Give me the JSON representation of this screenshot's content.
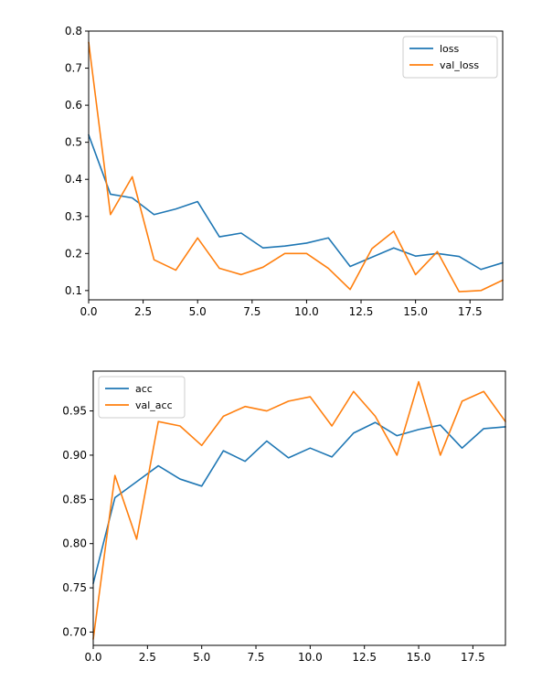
{
  "chart_data": [
    {
      "type": "line",
      "x": [
        0,
        1,
        2,
        3,
        4,
        5,
        6,
        7,
        8,
        9,
        10,
        11,
        12,
        13,
        14,
        15,
        16,
        17,
        18,
        19
      ],
      "xlim": [
        0,
        19
      ],
      "ylim": [
        0.075,
        0.8
      ],
      "xticks": [
        0,
        2.5,
        5,
        7.5,
        10,
        12.5,
        15,
        17.5
      ],
      "xtick_labels": [
        "0.0",
        "2.5",
        "5.0",
        "7.5",
        "10.0",
        "12.5",
        "15.0",
        "17.5"
      ],
      "yticks": [
        0.1,
        0.2,
        0.3,
        0.4,
        0.5,
        0.6,
        0.7,
        0.8
      ],
      "ytick_labels": [
        "0.1",
        "0.2",
        "0.3",
        "0.4",
        "0.5",
        "0.6",
        "0.7",
        "0.8"
      ],
      "legend_position": "top-right",
      "grid": false,
      "series": [
        {
          "name": "loss",
          "color": "#1f77b4",
          "values": [
            0.52,
            0.36,
            0.35,
            0.305,
            0.32,
            0.34,
            0.245,
            0.255,
            0.215,
            0.22,
            0.228,
            0.242,
            0.165,
            0.19,
            0.215,
            0.193,
            0.2,
            0.192,
            0.157,
            0.175
          ]
        },
        {
          "name": "val_loss",
          "color": "#ff7f0e",
          "values": [
            0.77,
            0.305,
            0.407,
            0.183,
            0.155,
            0.242,
            0.16,
            0.143,
            0.163,
            0.2,
            0.2,
            0.16,
            0.103,
            0.213,
            0.26,
            0.143,
            0.205,
            0.097,
            0.1,
            0.128
          ]
        }
      ]
    },
    {
      "type": "line",
      "x": [
        0,
        1,
        2,
        3,
        4,
        5,
        6,
        7,
        8,
        9,
        10,
        11,
        12,
        13,
        14,
        15,
        16,
        17,
        18,
        19
      ],
      "xlim": [
        0,
        19
      ],
      "ylim": [
        0.685,
        0.995
      ],
      "xticks": [
        0,
        2.5,
        5,
        7.5,
        10,
        12.5,
        15,
        17.5
      ],
      "xtick_labels": [
        "0.0",
        "2.5",
        "5.0",
        "7.5",
        "10.0",
        "12.5",
        "15.0",
        "17.5"
      ],
      "yticks": [
        0.7,
        0.75,
        0.8,
        0.85,
        0.9,
        0.95
      ],
      "ytick_labels": [
        "0.70",
        "0.75",
        "0.80",
        "0.85",
        "0.90",
        "0.95"
      ],
      "legend_position": "top-left",
      "grid": false,
      "series": [
        {
          "name": "acc",
          "color": "#1f77b4",
          "values": [
            0.755,
            0.852,
            0.87,
            0.888,
            0.873,
            0.865,
            0.905,
            0.893,
            0.916,
            0.897,
            0.908,
            0.898,
            0.925,
            0.937,
            0.922,
            0.929,
            0.934,
            0.908,
            0.93,
            0.932
          ]
        },
        {
          "name": "val_acc",
          "color": "#ff7f0e",
          "values": [
            0.692,
            0.877,
            0.805,
            0.938,
            0.933,
            0.911,
            0.944,
            0.955,
            0.95,
            0.961,
            0.966,
            0.933,
            0.972,
            0.944,
            0.9,
            0.983,
            0.9,
            0.961,
            0.972,
            0.938
          ]
        }
      ]
    }
  ]
}
